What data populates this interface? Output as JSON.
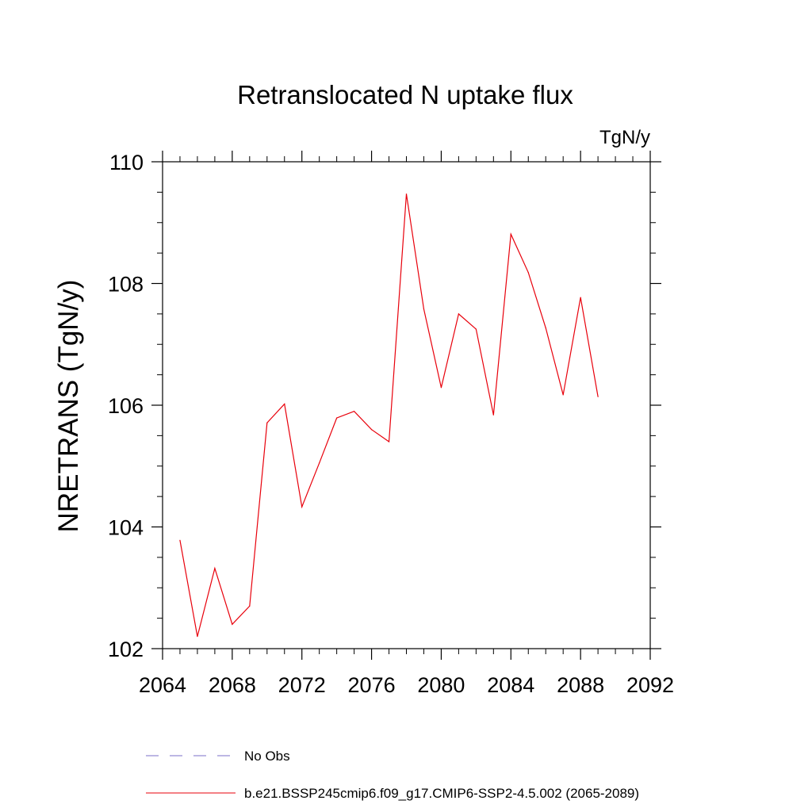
{
  "chart_data": {
    "type": "line",
    "title": "Retranslocated N uptake flux",
    "units_label": "TgN/y",
    "ylabel": "NRETRANS  (TgN/y)",
    "xlabel": "",
    "xlim": [
      2064,
      2092
    ],
    "ylim": [
      102,
      110
    ],
    "x_ticks": [
      2064,
      2068,
      2072,
      2076,
      2080,
      2084,
      2088,
      2092
    ],
    "y_ticks": [
      102,
      104,
      106,
      108,
      110
    ],
    "x_tick_labels": [
      "2064",
      "2068",
      "2072",
      "2076",
      "2080",
      "2084",
      "2088",
      "2092"
    ],
    "y_tick_labels": [
      "102",
      "104",
      "106",
      "108",
      "110"
    ],
    "x_minor_step": 1,
    "y_minor_step": 0.5,
    "grid": false,
    "legend_position": "bottom",
    "series": [
      {
        "name": "b.e21.BSSP245cmip6.f09_g17.CMIP6-SSP2-4.5.002 (2065-2089)",
        "color": "#e8000b",
        "style": "solid",
        "x": [
          2065,
          2066,
          2067,
          2068,
          2069,
          2070,
          2071,
          2072,
          2073,
          2074,
          2075,
          2076,
          2077,
          2078,
          2079,
          2080,
          2081,
          2082,
          2083,
          2084,
          2085,
          2086,
          2087,
          2088,
          2089
        ],
        "y": [
          103.78,
          102.2,
          103.32,
          102.4,
          102.7,
          105.71,
          106.02,
          104.33,
          105.05,
          105.79,
          105.9,
          105.6,
          105.4,
          109.47,
          107.58,
          106.29,
          107.5,
          107.25,
          105.84,
          108.81,
          108.18,
          107.27,
          106.17,
          107.77,
          106.14
        ]
      }
    ],
    "legend": [
      {
        "label": "No Obs",
        "color": "#7b6fc9",
        "style": "dashed"
      },
      {
        "label": "b.e21.BSSP245cmip6.f09_g17.CMIP6-SSP2-4.5.002 (2065-2089)",
        "color": "#e8000b",
        "style": "solid"
      }
    ]
  }
}
